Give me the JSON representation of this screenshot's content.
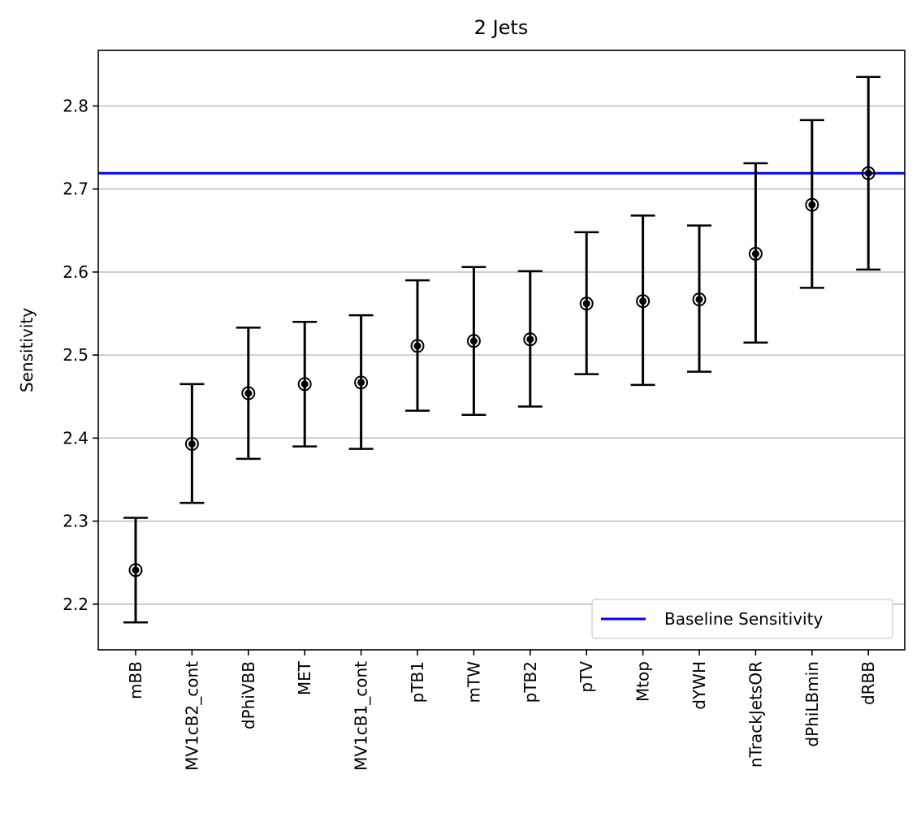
{
  "chart_data": {
    "type": "scatter",
    "title": "2 Jets",
    "xlabel": "",
    "ylabel": "Sensitivity",
    "ylim": [
      2.145,
      2.867
    ],
    "yticks": [
      "2.2",
      "2.3",
      "2.4",
      "2.5",
      "2.6",
      "2.7",
      "2.8"
    ],
    "grid": "horizontal",
    "categories": [
      "mBB",
      "MV1cB2_cont",
      "dPhiVBB",
      "MET",
      "MV1cB1_cont",
      "pTB1",
      "mTW",
      "pTB2",
      "pTV",
      "Mtop",
      "dYWH",
      "nTrackJetsOR",
      "dPhiLBmin",
      "dRBB"
    ],
    "values": [
      2.241,
      2.393,
      2.454,
      2.465,
      2.467,
      2.511,
      2.517,
      2.519,
      2.562,
      2.565,
      2.567,
      2.622,
      2.681,
      2.719
    ],
    "err_low": [
      2.178,
      2.322,
      2.375,
      2.39,
      2.387,
      2.433,
      2.428,
      2.438,
      2.477,
      2.464,
      2.48,
      2.515,
      2.581,
      2.603
    ],
    "err_high": [
      2.304,
      2.465,
      2.533,
      2.54,
      2.548,
      2.59,
      2.606,
      2.601,
      2.648,
      2.668,
      2.656,
      2.731,
      2.783,
      2.835
    ],
    "baseline": {
      "name": "Baseline Sensitivity",
      "value": 2.719,
      "color": "#0000ff"
    },
    "legend_position": "lower-right",
    "marker_color": "#000000"
  }
}
